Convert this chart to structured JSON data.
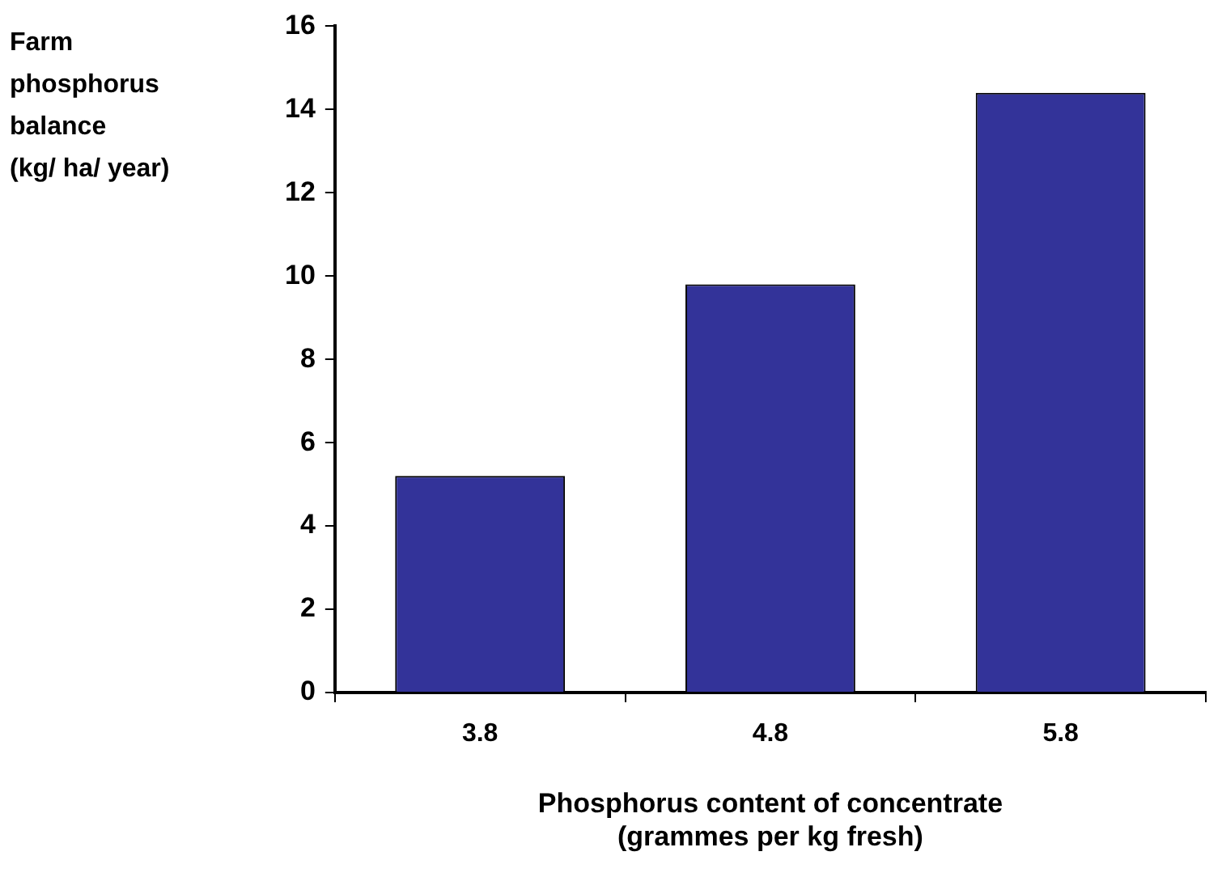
{
  "chart_data": {
    "type": "bar",
    "xlabel": "Phosphorus content of concentrate\n(grammes per kg fresh)",
    "ylabel": "Farm\nphosphorus\nbalance\n(kg/ ha/ year)",
    "categories": [
      "3.8",
      "4.8",
      "5.8"
    ],
    "values": [
      5.2,
      9.8,
      14.4
    ],
    "color": "#333399",
    "ylim": [
      0,
      16
    ],
    "yticks": [
      0,
      2,
      4,
      6,
      8,
      10,
      12,
      14,
      16
    ],
    "grid": false,
    "legend": false
  }
}
